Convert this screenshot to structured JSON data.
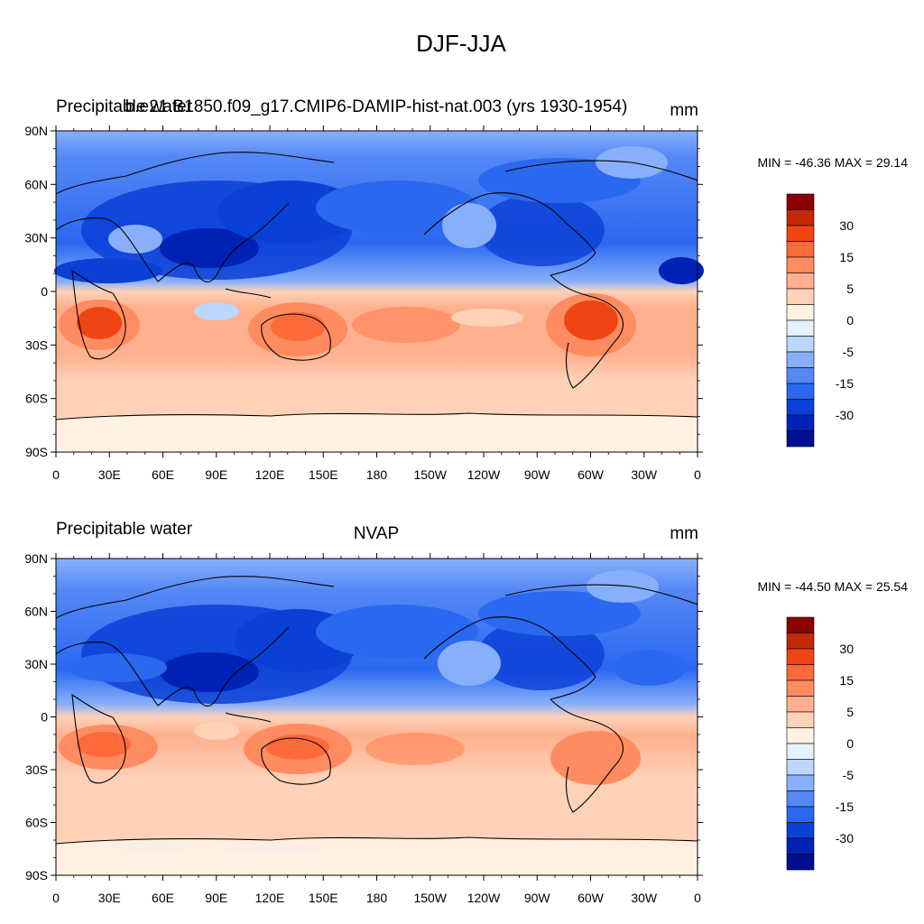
{
  "figure": {
    "title": "DJF-JJA"
  },
  "panels": [
    {
      "id": "top",
      "left_label": "Precipitable water",
      "center_label": "b.e21.B1850.f09_g17.CMIP6-DAMIP-hist-nat.003 (yrs 1930-1954)",
      "units": "mm",
      "stats": "MIN = -46.36 MAX =  29.14"
    },
    {
      "id": "bottom",
      "left_label": "Precipitable water",
      "center_label": "NVAP",
      "units": "mm",
      "stats": "MIN = -44.50 MAX =  25.54"
    }
  ],
  "axes": {
    "lat_ticks": [
      "90N",
      "60N",
      "30N",
      "0",
      "30S",
      "60S",
      "90S"
    ],
    "lon_ticks": [
      "0",
      "30E",
      "60E",
      "90E",
      "120E",
      "150E",
      "180",
      "150W",
      "120W",
      "90W",
      "60W",
      "30W",
      "0"
    ]
  },
  "colorbar": {
    "colors": [
      "#000f8f",
      "#0022b4",
      "#0a40d6",
      "#2a68f0",
      "#5588f6",
      "#88b0fa",
      "#bcd6fc",
      "#e4f1fe",
      "#fff2e2",
      "#ffd2b8",
      "#ffb08e",
      "#ff8c60",
      "#ff6a3a",
      "#f04412",
      "#c42808",
      "#8c0000"
    ],
    "labels": [
      "30",
      "15",
      "5",
      "0",
      "-5",
      "-15",
      "-30"
    ]
  }
}
